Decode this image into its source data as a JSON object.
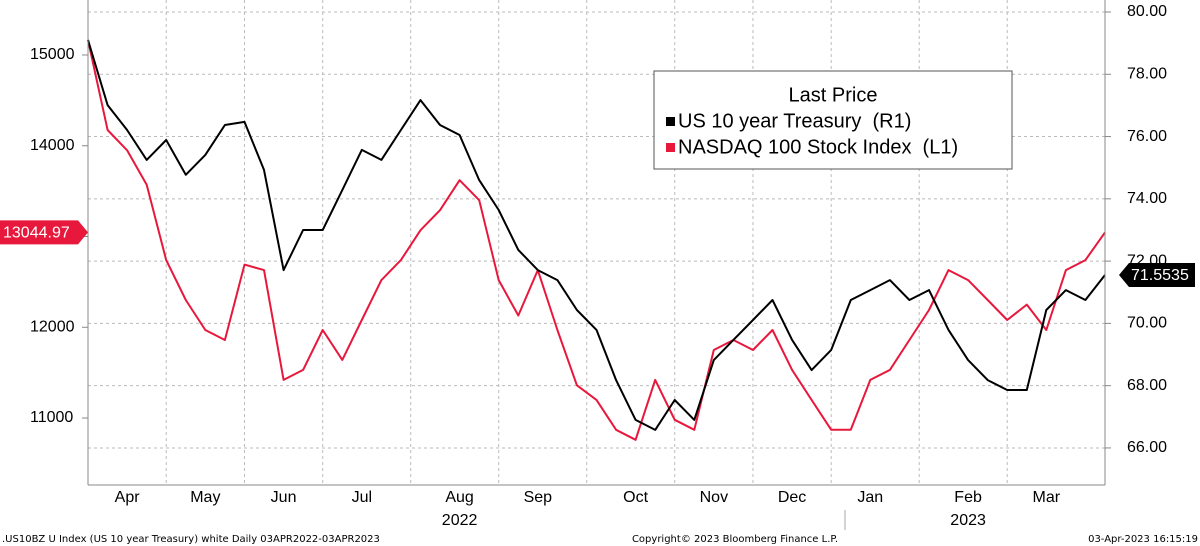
{
  "chart_data": {
    "type": "line",
    "legend_title": "Last Price",
    "legend_position": "upper center",
    "categories": [
      null,
      null,
      "Apr",
      null,
      null,
      null,
      "May",
      null,
      null,
      null,
      "Jun",
      null,
      null,
      null,
      "Jul",
      null,
      null,
      null,
      null,
      "Aug",
      null,
      null,
      null,
      "Sep",
      null,
      null,
      null,
      null,
      "Oct",
      null,
      null,
      null,
      "Nov",
      null,
      null,
      null,
      "Dec",
      null,
      null,
      null,
      "Jan",
      null,
      null,
      null,
      null,
      "Feb",
      null,
      null,
      null,
      "Mar",
      null,
      null,
      null
    ],
    "year_labels": [
      {
        "label": "2022",
        "category": 19
      },
      {
        "label": "2023",
        "category": 45
      }
    ],
    "series": [
      {
        "name": "US 10 year Treasury  (R1)",
        "color": "#000000",
        "axis": "y2",
        "last_label": "71.5535",
        "values": [
          79.1,
          77.01,
          76.21,
          75.25,
          75.89,
          74.77,
          75.41,
          76.37,
          76.47,
          74.93,
          71.71,
          73.0,
          73.0,
          74.28,
          75.57,
          75.25,
          76.21,
          77.17,
          76.37,
          76.05,
          74.6,
          73.64,
          72.36,
          71.71,
          71.39,
          70.43,
          69.79,
          68.18,
          66.9,
          66.58,
          67.54,
          66.9,
          68.82,
          69.47,
          70.11,
          70.75,
          69.47,
          68.5,
          69.15,
          70.75,
          71.07,
          71.39,
          70.75,
          71.07,
          69.79,
          68.82,
          68.18,
          67.86,
          67.86,
          70.43,
          71.07,
          70.75,
          71.5535
        ]
      },
      {
        "name": "NASDAQ 100 Stock Index  (L1)",
        "color": "#e8183c",
        "axis": "y",
        "last_label": "13044.97",
        "values": [
          15165,
          14174,
          13950,
          13570,
          12740,
          12300,
          11970,
          11860,
          12690,
          12630,
          11420,
          11530,
          11970,
          11640,
          12080,
          12520,
          12740,
          13070,
          13290,
          13620,
          13400,
          12520,
          12130,
          12630,
          11970,
          11360,
          11200,
          10870,
          10760,
          11420,
          10980,
          10870,
          11750,
          11860,
          11750,
          11970,
          11530,
          11200,
          10870,
          10870,
          11420,
          11530,
          11860,
          12190,
          12630,
          12520,
          12300,
          12080,
          12250,
          11970,
          12630,
          12740,
          13044.97
        ]
      }
    ],
    "ylim": [
      10262,
      15606
    ],
    "yticks": [
      11000,
      12000,
      13000,
      14000,
      15000
    ],
    "y2lim": [
      64.81,
      80.385
    ],
    "y2ticks": [
      {
        "value": 66,
        "label": "66.00"
      },
      {
        "value": 68,
        "label": "68.00"
      },
      {
        "value": 70,
        "label": "70.00"
      },
      {
        "value": 72,
        "label": "72.00"
      },
      {
        "value": 74,
        "label": "74.00"
      },
      {
        "value": 76,
        "label": "76.00"
      },
      {
        "value": 78,
        "label": "78.00"
      },
      {
        "value": 80,
        "label": "80.00"
      }
    ],
    "grid": true,
    "footer_left": ".US10BZ U Index (US 10 year Treasury) white  Daily 03APR2022-03APR2023",
    "footer_center": "Copyright© 2023 Bloomberg Finance L.P.",
    "footer_right": "03-Apr-2023 16:15:19"
  }
}
